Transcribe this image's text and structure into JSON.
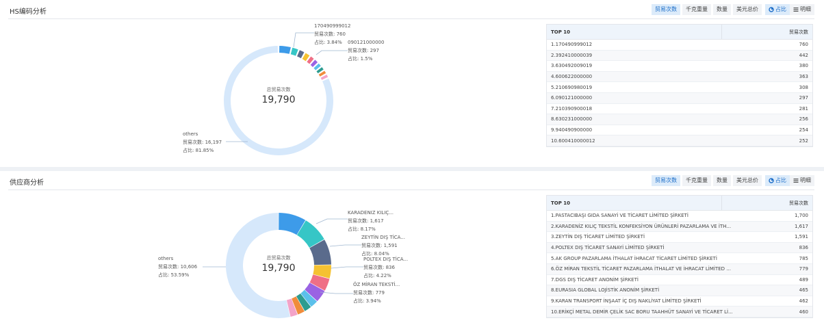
{
  "center_label": "总贸易次数",
  "center_value": "19,790",
  "toolbar": {
    "metric_buttons": [
      "贸易次数",
      "千克重量",
      "数量",
      "美元总价"
    ],
    "view_buttons": [
      "占比",
      "明细"
    ],
    "active_metric": "贸易次数"
  },
  "colors": {
    "others": "#d6e8fb",
    "accent": "#1e6fc9"
  },
  "hs": {
    "title": "HS编码分析",
    "annotations": [
      {
        "name": "170490999012",
        "count": "贸易次数: 760",
        "pct": "占比: 3.84%"
      },
      {
        "name": "090121000000",
        "count": "贸易次数: 297",
        "pct": "占比: 1.5%"
      },
      {
        "name": "others",
        "count": "贸易次数: 16,197",
        "pct": "占比: 81.85%"
      }
    ],
    "table": {
      "header": "TOP 10",
      "value_header": "贸易次数",
      "rows": [
        {
          "label": "1.170490999012",
          "value": "760"
        },
        {
          "label": "2.392410000039",
          "value": "442"
        },
        {
          "label": "3.630492009019",
          "value": "380"
        },
        {
          "label": "4.600622000000",
          "value": "363"
        },
        {
          "label": "5.210690980019",
          "value": "308"
        },
        {
          "label": "6.090121000000",
          "value": "297"
        },
        {
          "label": "7.210390900018",
          "value": "281"
        },
        {
          "label": "8.630231000000",
          "value": "256"
        },
        {
          "label": "9.940490900000",
          "value": "254"
        },
        {
          "label": "10.600410000012",
          "value": "252"
        }
      ]
    },
    "chart_data": {
      "type": "pie",
      "total": 19790,
      "categories": [
        "170490999012",
        "392410000039",
        "630492009019",
        "600622000000",
        "210690980019",
        "090121000000",
        "210390900018",
        "630231000000",
        "940490900000",
        "600410000012",
        "others"
      ],
      "values": [
        760,
        442,
        380,
        363,
        308,
        297,
        281,
        256,
        254,
        252,
        16197
      ],
      "colors": [
        "#3d9be9",
        "#36c6c6",
        "#5a6b8c",
        "#f5c232",
        "#ef6f86",
        "#9a63e3",
        "#5bc0eb",
        "#2d9c8f",
        "#f08c3c",
        "#f3a3c8",
        "#d6e8fb"
      ]
    }
  },
  "supplier": {
    "title": "供应商分析",
    "annotations": [
      {
        "name": "KARADENIZ KILIÇ...",
        "count": "贸易次数: 1,617",
        "pct": "占比: 8.17%"
      },
      {
        "name": "ZEYTİN DIŞ TİCA...",
        "count": "贸易次数: 1,591",
        "pct": "占比: 8.04%"
      },
      {
        "name": "POLTEX DIŞ TİCA...",
        "count": "贸易次数: 836",
        "pct": "占比: 4.22%"
      },
      {
        "name": "ÖZ MİRAN TEKSTİ...",
        "count": "贸易次数: 779",
        "pct": "占比: 3.94%"
      },
      {
        "name": "others",
        "count": "贸易次数: 10,606",
        "pct": "占比: 53.59%"
      }
    ],
    "table": {
      "header": "TOP 10",
      "value_header": "贸易次数",
      "rows": [
        {
          "label": "1.PASTACIBAŞI GIDA SANAYİ VE TİCARET LİMİTED ŞİRKETİ",
          "value": "1,700"
        },
        {
          "label": "2.KARADENİZ KILIÇ TEKSTİL KONFEKSİYON ÜRÜNLERİ PAZARLAMA VE İTH...",
          "value": "1,617"
        },
        {
          "label": "3.ZEYTİN DIŞ TİCARET LİMİTED ŞİRKETİ",
          "value": "1,591"
        },
        {
          "label": "4.POLTEX DIŞ TİCARET SANAYİ LİMİTED ŞİRKETİ",
          "value": "836"
        },
        {
          "label": "5.AK GROUP PAZARLAMA İTHALAT İHRACAT TİCARET LİMİTED ŞİRKETİ",
          "value": "785"
        },
        {
          "label": "6.ÖZ MİRAN TEKSTİL TİCARET PAZARLAMA İTHALAT VE İHRACAT LİMİTED ...",
          "value": "779"
        },
        {
          "label": "7.DGS DIŞ TİCARET ANONİM ŞİRKETİ",
          "value": "489"
        },
        {
          "label": "8.EURASIA GLOBAL LOJİSTİK ANONİM ŞİRKETİ",
          "value": "465"
        },
        {
          "label": "9.KARAN TRANSPORT İNŞAAT İÇ DIŞ NAKLİYAT LİMİTED ŞİRKETİ",
          "value": "462"
        },
        {
          "label": "10.ERİKÇİ METAL DEMİR ÇELİK SAC BORU TAAHHÜT SANAYİ VE TİCARET Lİ...",
          "value": "460"
        }
      ]
    },
    "chart_data": {
      "type": "pie",
      "total": 19790,
      "categories": [
        "PASTACIBAŞI GIDA SANAYİ VE TİCARET LİMİTED ŞİRKETİ",
        "KARADENİZ KILIÇ TEKSTİL KONFEKSİYON ÜRÜNLERİ PAZARLAMA VE İTH...",
        "ZEYTİN DIŞ TİCARET LİMİTED ŞİRKETİ",
        "POLTEX DIŞ TİCARET SANAYİ LİMİTED ŞİRKETİ",
        "AK GROUP PAZARLAMA İTHALAT İHRACAT TİCARET LİMİTED ŞİRKETİ",
        "ÖZ MİRAN TEKSTİL TİCARET PAZARLAMA İTHALAT VE İHRACAT LİMİTED ...",
        "DGS DIŞ TİCARET ANONİM ŞİRKETİ",
        "EURASIA GLOBAL LOJİSTİK ANONİM ŞİRKETİ",
        "KARAN TRANSPORT İNŞAAT İÇ DIŞ NAKLİYAT LİMİTED ŞİRKETİ",
        "ERİKÇİ METAL DEMİR ÇELİK SAC BORU TAAHHÜT SANAYİ VE TİCARET Lİ...",
        "others"
      ],
      "values": [
        1700,
        1617,
        1591,
        836,
        785,
        779,
        489,
        465,
        462,
        460,
        10606
      ],
      "colors": [
        "#3d9be9",
        "#36c6c6",
        "#5a6b8c",
        "#f5c232",
        "#ef6f86",
        "#9a63e3",
        "#5bc0eb",
        "#2d9c8f",
        "#f08c3c",
        "#f3a3c8",
        "#d6e8fb"
      ]
    }
  }
}
